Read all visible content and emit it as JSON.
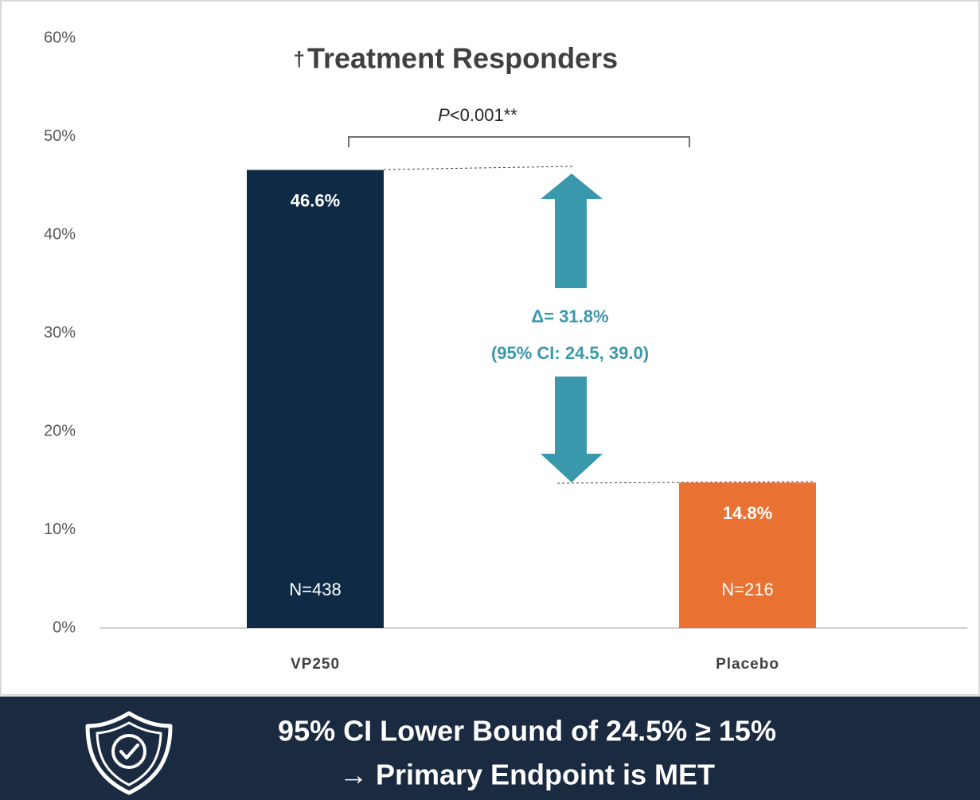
{
  "chart_data": {
    "type": "bar",
    "title_marker": "†",
    "title": "Treatment Responders",
    "categories": [
      "VP250",
      "Placebo"
    ],
    "values": [
      46.6,
      14.8
    ],
    "value_labels": [
      "46.6%",
      "14.8%"
    ],
    "n_labels": [
      "N=438",
      "N=216"
    ],
    "colors": [
      "#0f2a44",
      "#e97132"
    ],
    "ylim": [
      0,
      60
    ],
    "yticks": [
      {
        "value": 0,
        "label": "0%"
      },
      {
        "value": 10,
        "label": "10%"
      },
      {
        "value": 20,
        "label": "20%"
      },
      {
        "value": 30,
        "label": "30%"
      },
      {
        "value": 40,
        "label": "40%"
      },
      {
        "value": 50,
        "label": "50%"
      },
      {
        "value": 60,
        "label": "60%"
      }
    ],
    "grid": false,
    "p_value": {
      "symbol": "P",
      "text": "<0.001**"
    },
    "difference": {
      "label": "Δ= 31.8%",
      "ci": "(95% CI: 24.5, 39.0)",
      "color": "#3a98ad"
    }
  },
  "banner": {
    "line1": "95% CI Lower Bound of 24.5% ≥ 15%",
    "line2": "→ Primary Endpoint is MET"
  }
}
